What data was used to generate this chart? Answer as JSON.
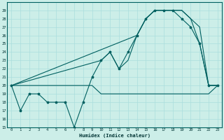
{
  "xlabel": "Humidex (Indice chaleur)",
  "bg_color": "#cceee8",
  "grid_color": "#aadddd",
  "line_color": "#006060",
  "ylim": [
    15,
    30
  ],
  "xlim": [
    -0.5,
    23.5
  ],
  "yticks": [
    15,
    16,
    17,
    18,
    19,
    20,
    21,
    22,
    23,
    24,
    25,
    26,
    27,
    28,
    29
  ],
  "xticks": [
    0,
    1,
    2,
    3,
    4,
    5,
    6,
    7,
    8,
    9,
    10,
    11,
    12,
    13,
    14,
    15,
    16,
    17,
    18,
    19,
    20,
    21,
    22,
    23
  ],
  "line_flat_x": [
    0,
    1,
    2,
    3,
    4,
    5,
    6,
    7,
    8,
    9,
    10,
    11,
    12,
    13,
    14,
    15,
    16,
    17,
    18,
    19,
    20,
    21,
    22,
    23
  ],
  "line_flat_y": [
    20,
    20,
    20,
    20,
    20,
    20,
    20,
    20,
    20,
    20,
    19,
    19,
    19,
    19,
    19,
    19,
    19,
    19,
    19,
    19,
    19,
    19,
    19,
    20
  ],
  "line_zigzag_x": [
    0,
    1,
    2,
    3,
    4,
    5,
    6,
    7,
    8,
    9,
    10,
    11,
    12,
    13,
    14,
    15,
    16,
    17,
    18,
    19,
    20,
    21,
    22,
    23
  ],
  "line_zigzag_y": [
    20,
    17,
    19,
    19,
    18,
    18,
    18,
    15,
    18,
    21,
    23,
    24,
    22,
    24,
    26,
    28,
    29,
    29,
    29,
    28,
    27,
    25,
    20,
    20
  ],
  "line_diag1_x": [
    0,
    10,
    11,
    12,
    13,
    14,
    15,
    16,
    17,
    18,
    19,
    20,
    21,
    22,
    23
  ],
  "line_diag1_y": [
    20,
    23,
    24,
    22,
    23,
    26,
    28,
    29,
    29,
    29,
    29,
    28,
    27,
    20,
    20
  ],
  "line_diag2_x": [
    0,
    14,
    15,
    16,
    17,
    18,
    19,
    20,
    21,
    22,
    23
  ],
  "line_diag2_y": [
    20,
    26,
    28,
    29,
    29,
    29,
    29,
    28,
    25,
    20,
    20
  ]
}
